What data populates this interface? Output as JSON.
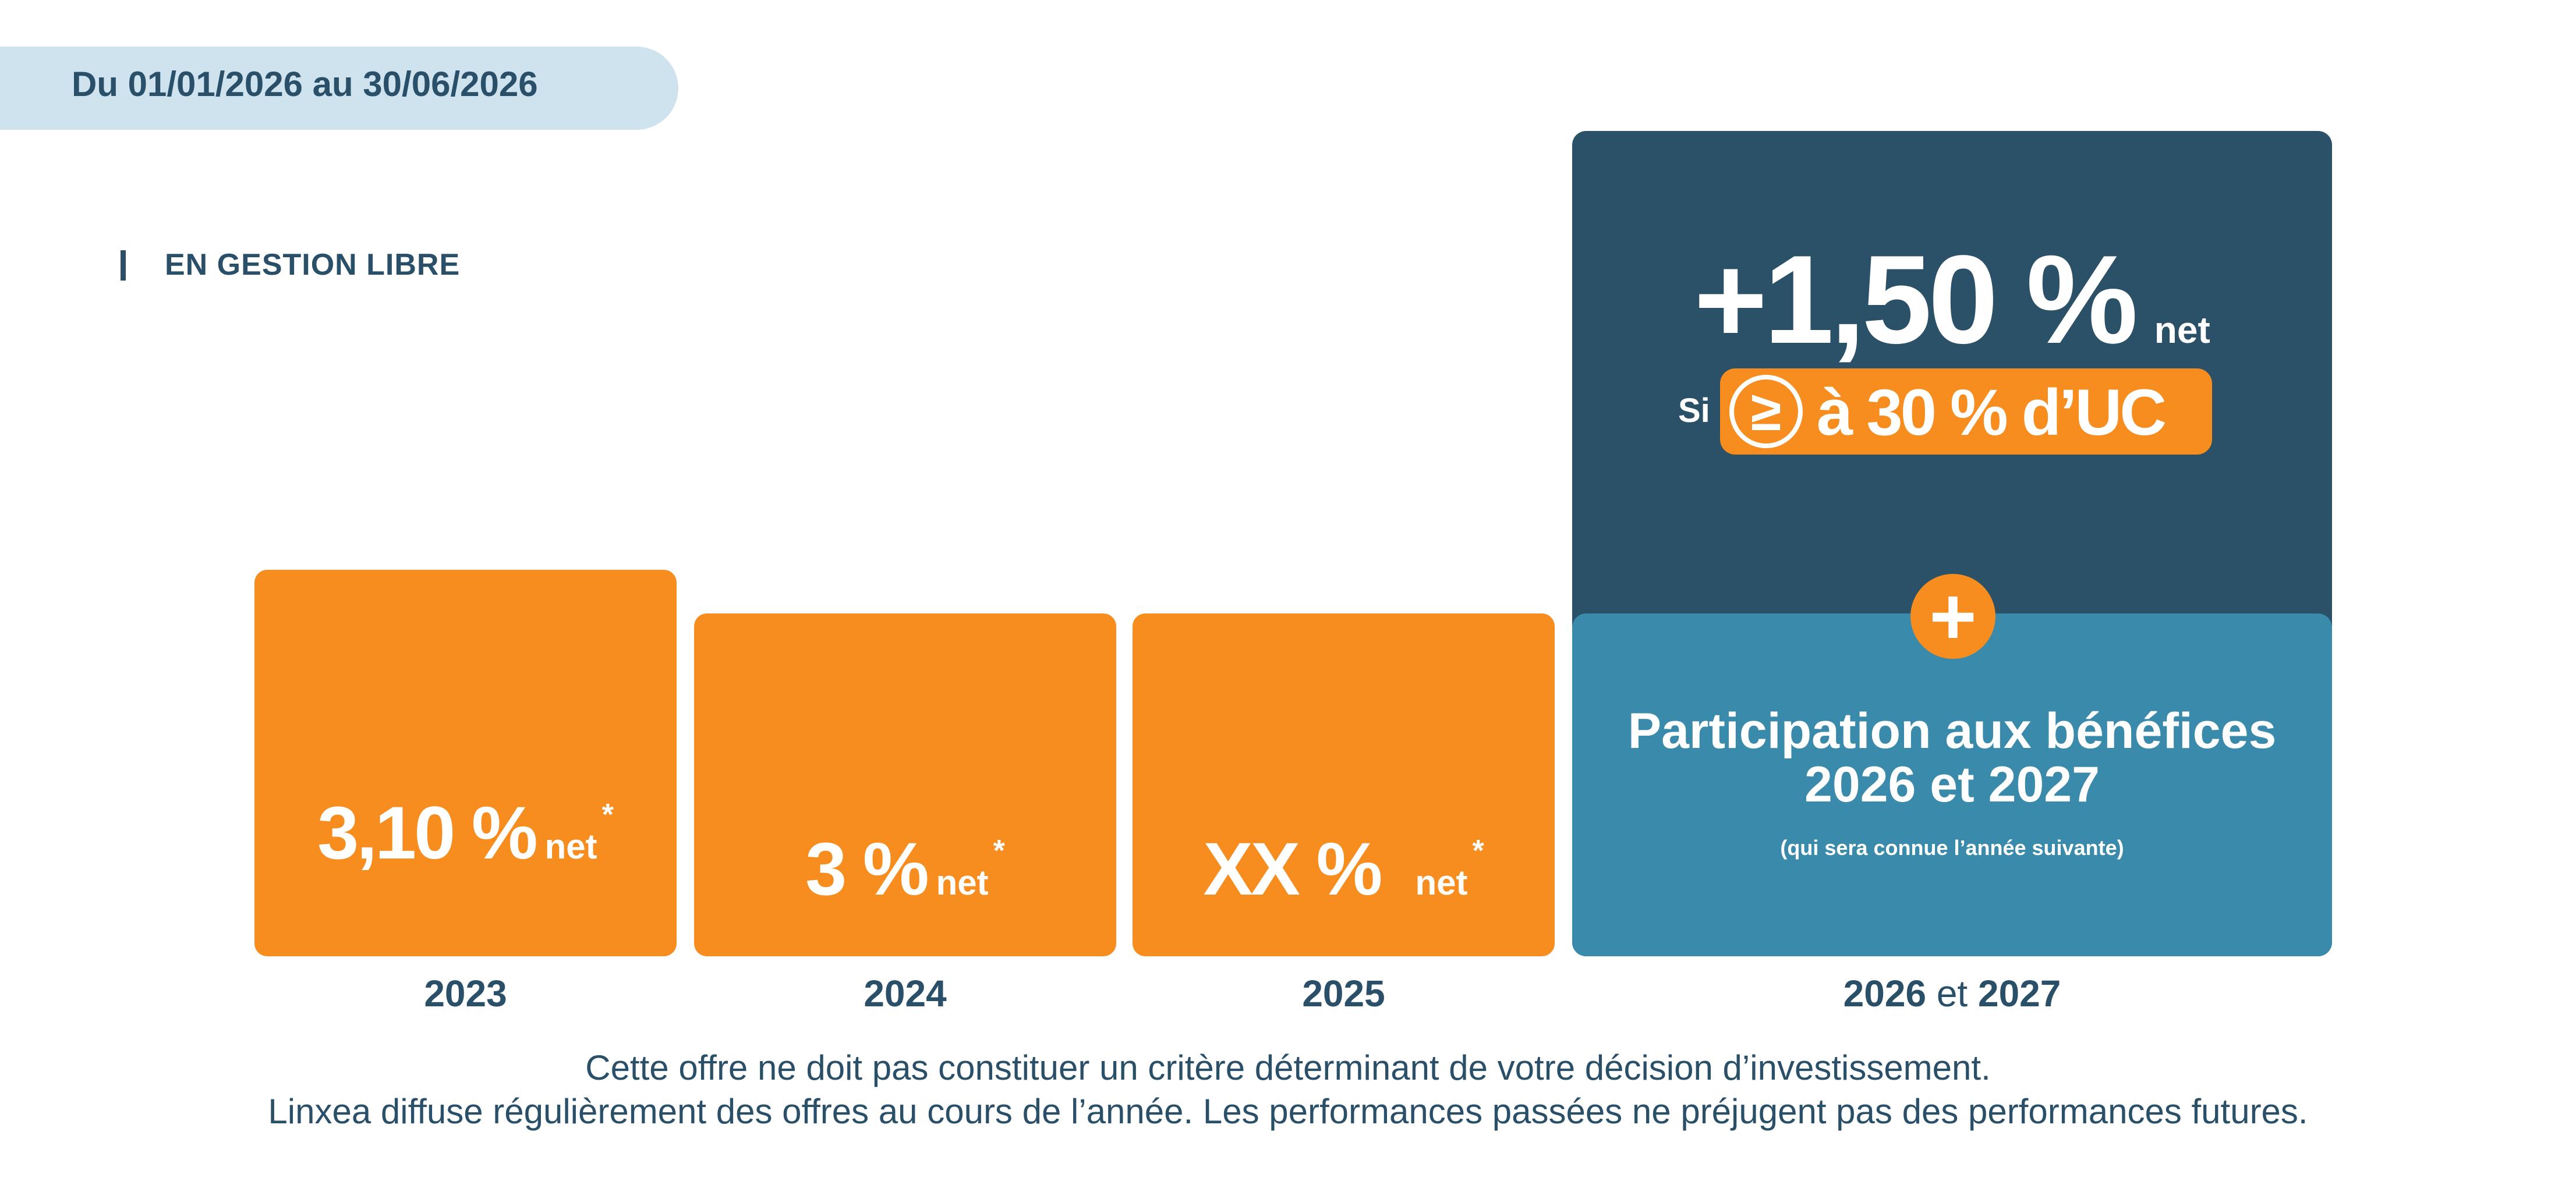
{
  "header": {
    "period": "Du 01/01/2026 au 30/06/2026"
  },
  "section": {
    "label": "EN GESTION LIBRE"
  },
  "cards": [
    {
      "year": "2023",
      "rate": "3,10 %",
      "net": "net",
      "star": "*"
    },
    {
      "year": "2024",
      "rate": "3 %",
      "net": "net",
      "star": "*"
    },
    {
      "year": "2025",
      "rate": "XX %",
      "net": "net",
      "star": "*"
    }
  ],
  "bonus": {
    "value": "+1,50 %",
    "net": "net",
    "condition_prefix": "Si",
    "condition_symbol": "≥",
    "condition_text": "à 30 % d’UC",
    "plus_symbol": "+"
  },
  "profit_sharing": {
    "title_line1": "Participation aux bénéfices",
    "title_line2": "2026 et 2027",
    "note": "(qui sera connue l’année suivante)"
  },
  "last_year_label": {
    "year_a": "2026",
    "join": "et",
    "year_b": "2027"
  },
  "disclaimer": {
    "line1": "Cette offre ne doit pas constituer un critère déterminant de votre décision d’investissement.",
    "line2": "Linxea diffuse régulièrement des offres au cours de l’année. Les performances passées ne préjugent pas des performances futures."
  },
  "colors": {
    "orange": "#f68d1e",
    "navy": "#2b5168",
    "teal": "#3a8aab",
    "light_blue": "#cfe3ef"
  }
}
